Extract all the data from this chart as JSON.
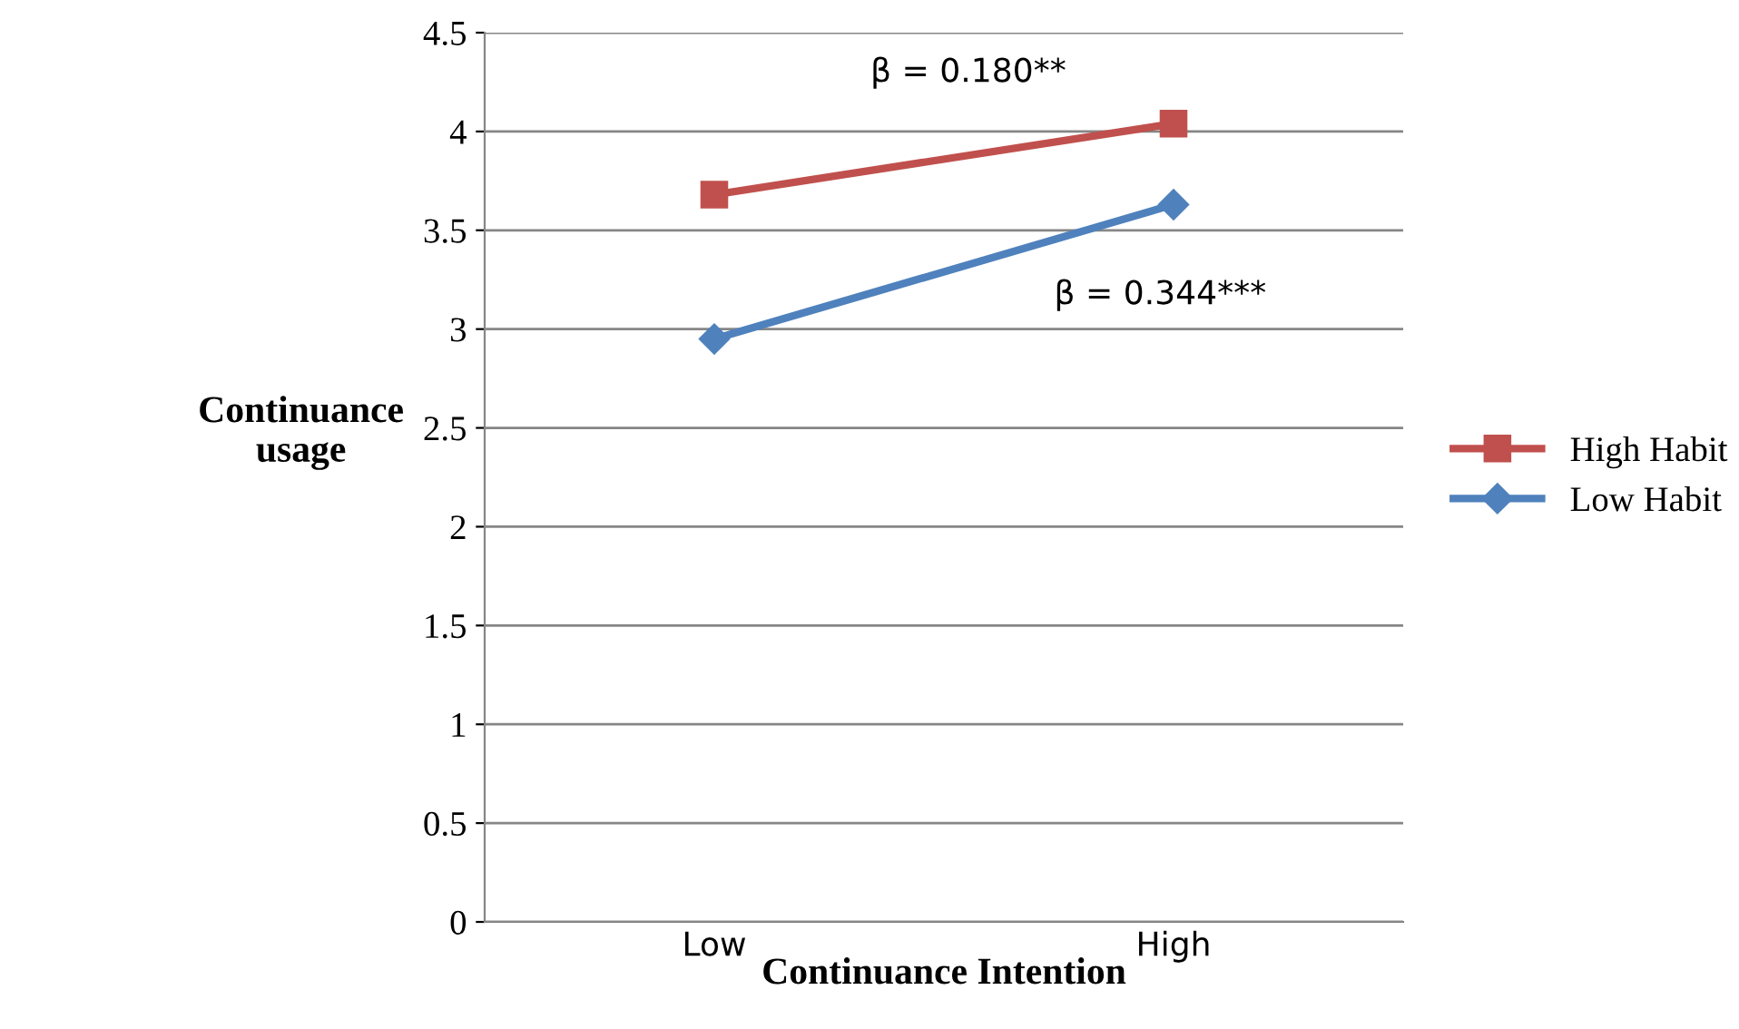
{
  "chart_data": {
    "type": "line",
    "xlabel": "Continuance Intention",
    "ylabel": "Continuance\nusage",
    "categories": [
      "Low",
      "High"
    ],
    "series": [
      {
        "name": "High Habit",
        "color": "#c0504d",
        "marker": "square",
        "values": [
          3.68,
          4.04
        ]
      },
      {
        "name": "Low Habit",
        "color": "#4f81bd",
        "marker": "diamond",
        "values": [
          2.95,
          3.63
        ]
      }
    ],
    "ylim": [
      0,
      4.5
    ],
    "yticks": [
      0,
      0.5,
      1,
      1.5,
      2,
      2.5,
      3,
      3.5,
      4,
      4.5
    ],
    "grid": "y",
    "legend": "right",
    "annotations": [
      "β = 0.180**",
      "β = 0.344***"
    ]
  }
}
